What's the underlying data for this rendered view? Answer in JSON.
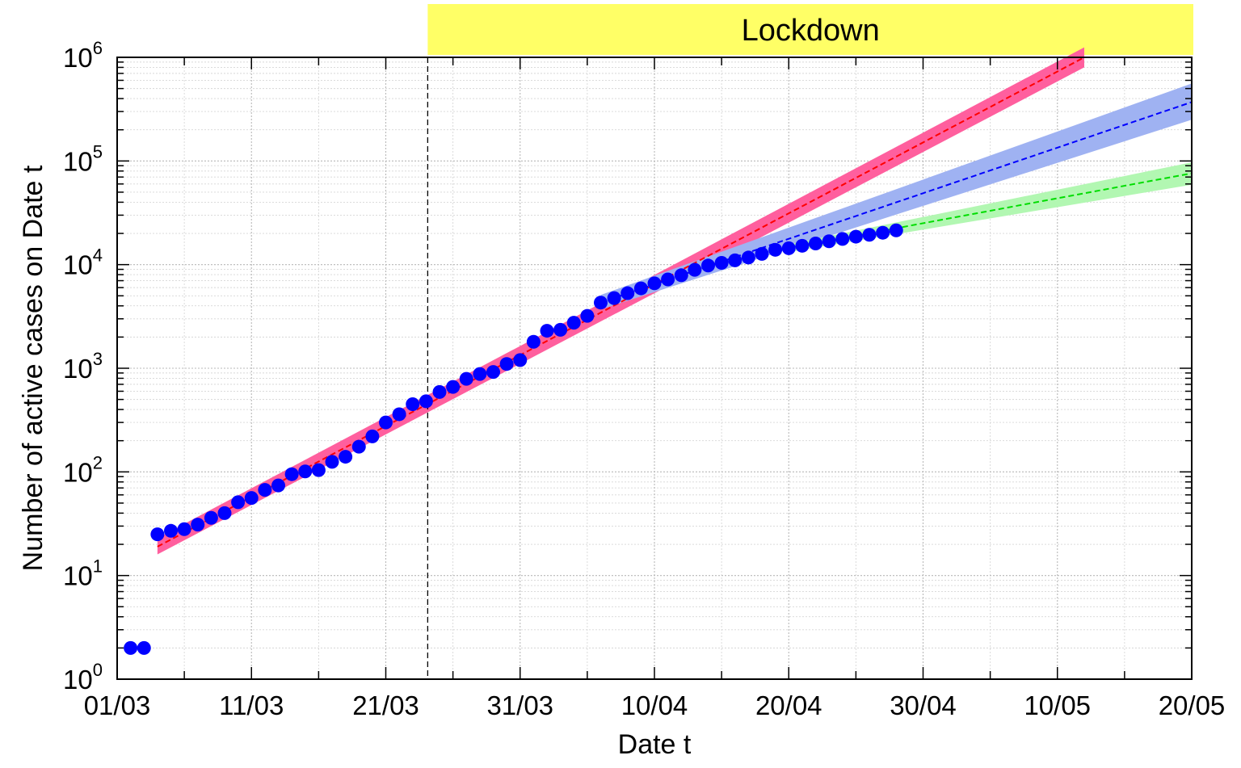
{
  "chart_data": {
    "type": "scatter",
    "title": "",
    "xlabel": "Date t",
    "ylabel": "Number of active cases on Date t",
    "yscale": "log",
    "xlim": [
      "2020-03-01",
      "2020-05-20"
    ],
    "ylim": [
      1,
      1000000
    ],
    "x_ticks": [
      "01/03",
      "11/03",
      "21/03",
      "31/03",
      "10/04",
      "20/04",
      "30/04",
      "10/05",
      "20/05"
    ],
    "y_ticks": [
      {
        "base": "10",
        "exp": "0"
      },
      {
        "base": "10",
        "exp": "1"
      },
      {
        "base": "10",
        "exp": "2"
      },
      {
        "base": "10",
        "exp": "3"
      },
      {
        "base": "10",
        "exp": "4"
      },
      {
        "base": "10",
        "exp": "5"
      },
      {
        "base": "10",
        "exp": "6"
      }
    ],
    "grid": true,
    "annotations": [
      {
        "label": "Lockdown",
        "start": "2020-03-24",
        "end": "2020-05-20",
        "color": "#ffff66",
        "marker_date": "2020-03-24",
        "marker_style": "dashed"
      }
    ],
    "observed": {
      "color": "#0000ff",
      "points": [
        [
          "2020-03-02",
          2
        ],
        [
          "2020-03-03",
          2
        ],
        [
          "2020-03-04",
          25
        ],
        [
          "2020-03-05",
          27
        ],
        [
          "2020-03-06",
          28
        ],
        [
          "2020-03-07",
          31
        ],
        [
          "2020-03-08",
          36
        ],
        [
          "2020-03-09",
          40
        ],
        [
          "2020-03-10",
          51
        ],
        [
          "2020-03-11",
          56
        ],
        [
          "2020-03-12",
          67
        ],
        [
          "2020-03-13",
          74
        ],
        [
          "2020-03-14",
          95
        ],
        [
          "2020-03-15",
          101
        ],
        [
          "2020-03-16",
          104
        ],
        [
          "2020-03-17",
          125
        ],
        [
          "2020-03-18",
          140
        ],
        [
          "2020-03-19",
          175
        ],
        [
          "2020-03-20",
          220
        ],
        [
          "2020-03-21",
          300
        ],
        [
          "2020-03-22",
          360
        ],
        [
          "2020-03-23",
          450
        ],
        [
          "2020-03-24",
          480
        ],
        [
          "2020-03-25",
          590
        ],
        [
          "2020-03-26",
          660
        ],
        [
          "2020-03-27",
          790
        ],
        [
          "2020-03-28",
          880
        ],
        [
          "2020-03-29",
          920
        ],
        [
          "2020-03-30",
          1100
        ],
        [
          "2020-03-31",
          1200
        ],
        [
          "2020-04-01",
          1800
        ],
        [
          "2020-04-02",
          2300
        ],
        [
          "2020-04-03",
          2350
        ],
        [
          "2020-04-04",
          2750
        ],
        [
          "2020-04-05",
          3200
        ],
        [
          "2020-04-06",
          4300
        ],
        [
          "2020-04-07",
          4750
        ],
        [
          "2020-04-08",
          5300
        ],
        [
          "2020-04-09",
          5900
        ],
        [
          "2020-04-10",
          6600
        ],
        [
          "2020-04-11",
          7200
        ],
        [
          "2020-04-12",
          7900
        ],
        [
          "2020-04-13",
          8900
        ],
        [
          "2020-04-14",
          9800
        ],
        [
          "2020-04-15",
          10400
        ],
        [
          "2020-04-16",
          11000
        ],
        [
          "2020-04-17",
          11700
        ],
        [
          "2020-04-18",
          12700
        ],
        [
          "2020-04-19",
          13900
        ],
        [
          "2020-04-20",
          14400
        ],
        [
          "2020-04-21",
          15200
        ],
        [
          "2020-04-22",
          16000
        ],
        [
          "2020-04-23",
          16800
        ],
        [
          "2020-04-24",
          17700
        ],
        [
          "2020-04-25",
          18600
        ],
        [
          "2020-04-26",
          19400
        ],
        [
          "2020-04-27",
          20300
        ],
        [
          "2020-04-28",
          21400
        ]
      ]
    },
    "fits": [
      {
        "color": "#ff0000",
        "band_color": "#ff5f9e",
        "x": [
          "2020-03-04",
          "2020-05-12"
        ],
        "y": [
          19,
          1000000
        ],
        "band_low": [
          16,
          800000
        ],
        "band_high": [
          23,
          1250000
        ]
      },
      {
        "color": "#0000ff",
        "band_color": "#9fb2f2",
        "x": [
          "2020-04-06",
          "2020-05-20"
        ],
        "y": [
          4300,
          370000
        ],
        "band_low": [
          3700,
          250000
        ],
        "band_high": [
          5100,
          560000
        ]
      },
      {
        "color": "#00dd00",
        "band_color": "#b2f7b2",
        "x": [
          "2020-04-20",
          "2020-05-20"
        ],
        "y": [
          14400,
          76000
        ],
        "band_low": [
          13200,
          59000
        ],
        "band_high": [
          15700,
          97000
        ]
      }
    ]
  }
}
